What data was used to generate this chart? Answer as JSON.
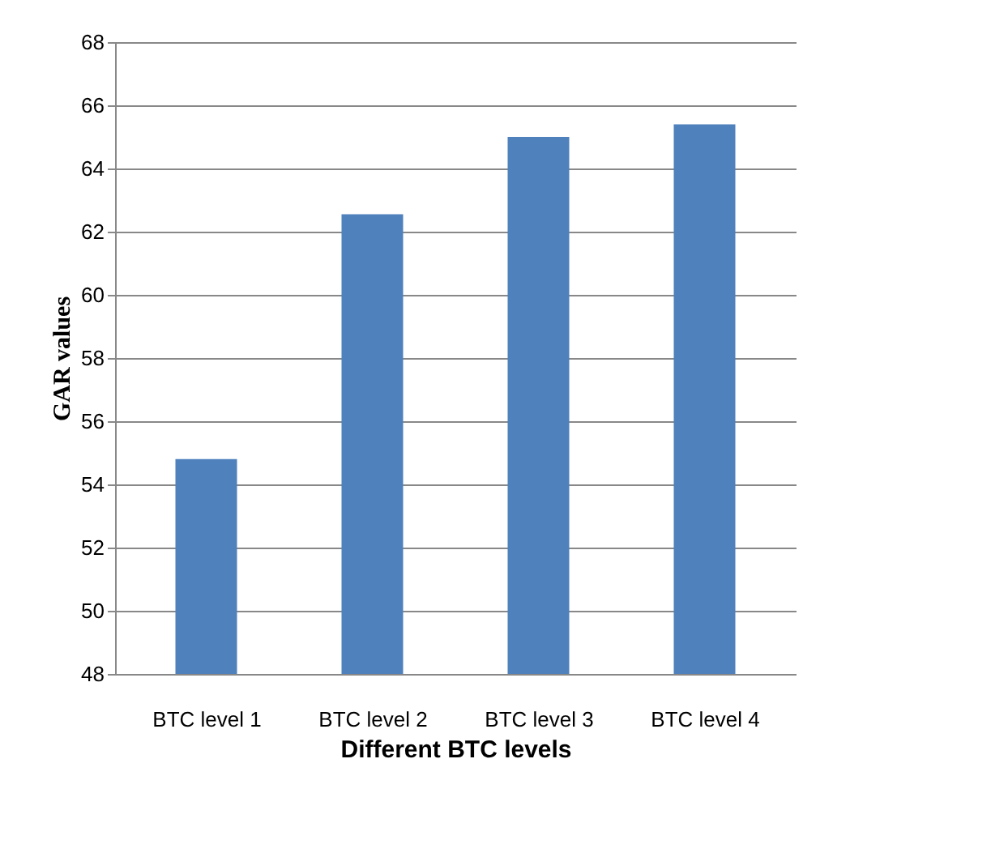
{
  "chart_data": {
    "type": "bar",
    "xlabel": "Different BTC levels",
    "ylabel": "GAR values",
    "categories": [
      "BTC level 1",
      "BTC level 2",
      "BTC level 3",
      "BTC level 4"
    ],
    "values": [
      54.8,
      62.55,
      65.0,
      65.4
    ],
    "color": "#4f81bd",
    "ylim": [
      48,
      68
    ],
    "yticks": [
      48,
      50,
      52,
      54,
      56,
      58,
      60,
      62,
      64,
      66,
      68
    ],
    "grid": "y"
  }
}
